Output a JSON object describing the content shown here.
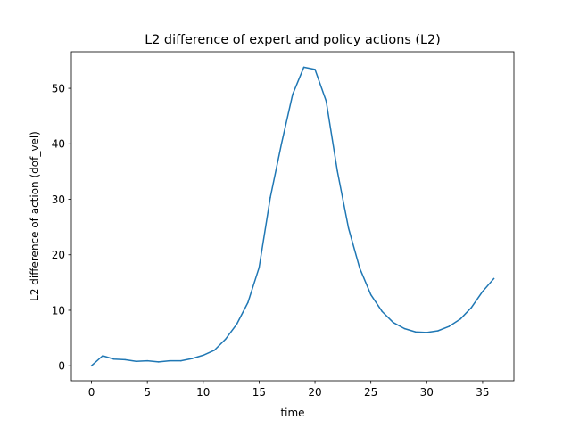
{
  "chart_data": {
    "type": "line",
    "title": "L2 difference of expert and policy actions (L2)",
    "xlabel": "time",
    "ylabel": "L2 difference of action (dof_vel)",
    "xlim": [
      -1.8,
      37.8
    ],
    "ylim": [
      -2.7,
      56.6
    ],
    "xticks": [
      0,
      5,
      10,
      15,
      20,
      25,
      30,
      35
    ],
    "yticks": [
      0,
      10,
      20,
      30,
      40,
      50
    ],
    "grid": false,
    "series": [
      {
        "color": "#1f77b4",
        "x": [
          0,
          1,
          2,
          3,
          4,
          5,
          6,
          7,
          8,
          9,
          10,
          11,
          12,
          13,
          14,
          15,
          16,
          17,
          18,
          19,
          20,
          21,
          22,
          23,
          24,
          25,
          26,
          27,
          28,
          29,
          30,
          31,
          32,
          33,
          34,
          35,
          36
        ],
        "y": [
          0.0,
          1.8,
          1.2,
          1.1,
          0.8,
          0.9,
          0.7,
          0.9,
          0.9,
          1.3,
          1.9,
          2.8,
          4.8,
          7.5,
          11.4,
          17.7,
          30.3,
          40.0,
          48.9,
          53.8,
          53.4,
          47.7,
          35.1,
          24.8,
          17.6,
          12.8,
          9.8,
          7.8,
          6.7,
          6.1,
          6.0,
          6.3,
          7.1,
          8.4,
          10.5,
          13.4,
          15.7
        ]
      }
    ]
  }
}
